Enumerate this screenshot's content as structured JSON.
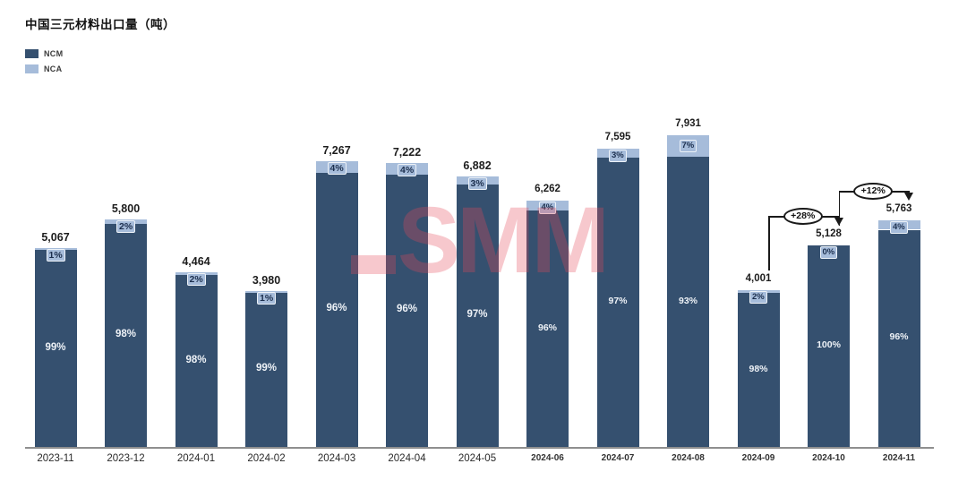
{
  "title": "中国三元材料出口量（吨）",
  "legend": [
    {
      "label": "NCM",
      "color": "#35506f"
    },
    {
      "label": "NCA",
      "color": "#a6bcda"
    }
  ],
  "watermark": "SMM",
  "colors": {
    "ncm": "#35506f",
    "nca": "#a6bcda",
    "axis": "#8f8f8f",
    "watermark": "rgba(230,72,88,0.3)",
    "annotation": "#1a1a1a"
  },
  "chart_data": {
    "type": "bar",
    "stacked": true,
    "grid": false,
    "legend_position": "top-left",
    "title": "中国三元材料出口量（吨）",
    "ylabel": "吨",
    "categories": [
      "2023-11",
      "2023-12",
      "2024-01",
      "2024-02",
      "2024-03",
      "2024-04",
      "2024-05",
      "2024-06",
      "2024-07",
      "2024-08",
      "2024-09",
      "2024-10",
      "2024-11"
    ],
    "totals": [
      5067,
      5800,
      4464,
      3980,
      7267,
      7222,
      6882,
      6262,
      7595,
      7931,
      4001,
      5128,
      5763
    ],
    "total_labels": [
      "5,067",
      "5,800",
      "4,464",
      "3,980",
      "7,267",
      "7,222",
      "6,882",
      "6,262",
      "7,595",
      "7,931",
      "4,001",
      "5,128",
      "5,763"
    ],
    "series": [
      {
        "name": "NCM",
        "unit": "%",
        "values": [
          99,
          98,
          98,
          99,
          96,
          96,
          97,
          96,
          97,
          93,
          98,
          100,
          96
        ]
      },
      {
        "name": "NCA",
        "unit": "%",
        "values": [
          1,
          2,
          2,
          1,
          4,
          4,
          3,
          4,
          3,
          7,
          2,
          0,
          4
        ]
      }
    ],
    "annotations": [
      {
        "label": "+28%",
        "from": "2024-09",
        "to": "2024-10"
      },
      {
        "label": "+12%",
        "from": "2024-10",
        "to": "2024-11"
      }
    ]
  }
}
